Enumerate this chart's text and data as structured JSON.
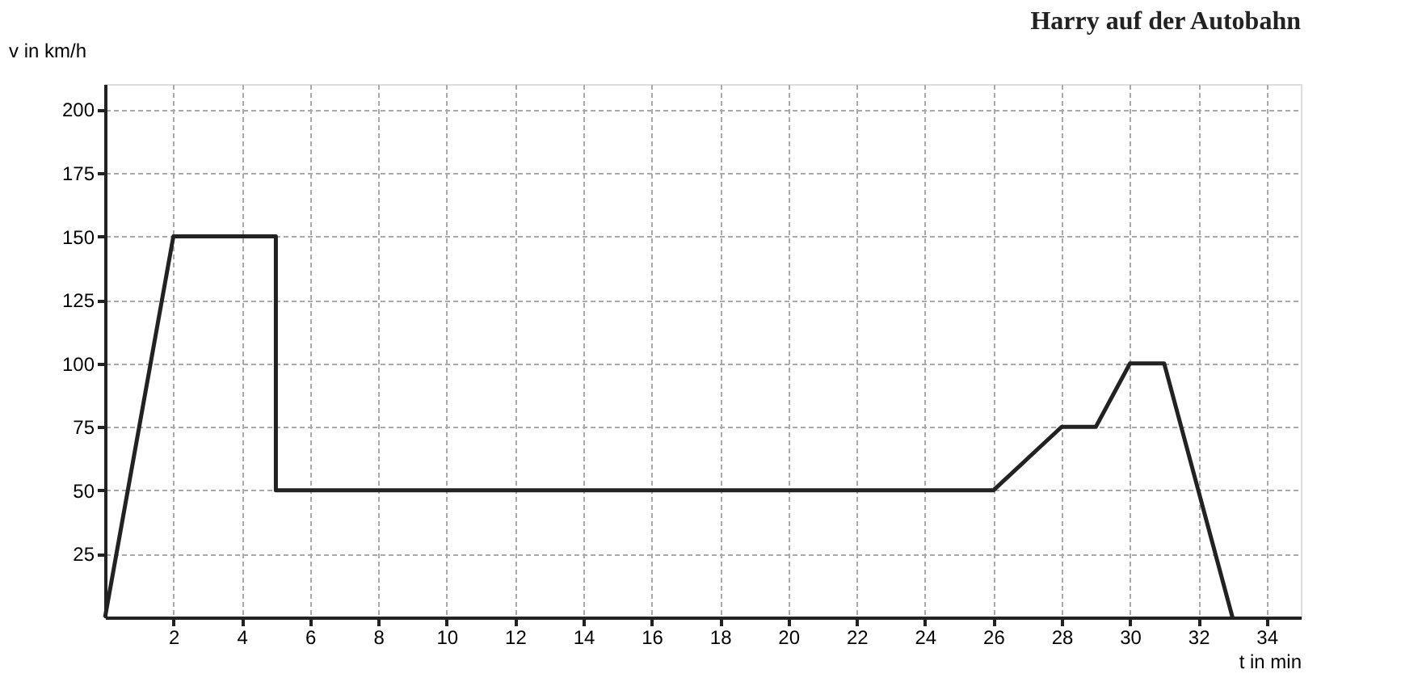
{
  "chart_data": {
    "type": "line",
    "title": "Harry auf der Autobahn",
    "xlabel": "t in min",
    "ylabel": "v in km/h",
    "x": [
      0,
      2,
      5,
      5,
      26,
      28,
      29,
      30,
      31,
      33
    ],
    "series": [
      {
        "color": "#222222",
        "values": [
          0,
          150,
          150,
          50,
          50,
          75,
          75,
          100,
          100,
          0
        ]
      }
    ],
    "xlim": [
      0,
      35
    ],
    "ylim": [
      0,
      210
    ],
    "xticks": [
      2,
      4,
      6,
      8,
      10,
      12,
      14,
      16,
      18,
      20,
      22,
      24,
      26,
      28,
      30,
      32,
      34
    ],
    "yticks": [
      25,
      50,
      75,
      100,
      125,
      150,
      175,
      200
    ],
    "grid": true,
    "legend": false,
    "marker": "none",
    "line_style": "solid"
  }
}
